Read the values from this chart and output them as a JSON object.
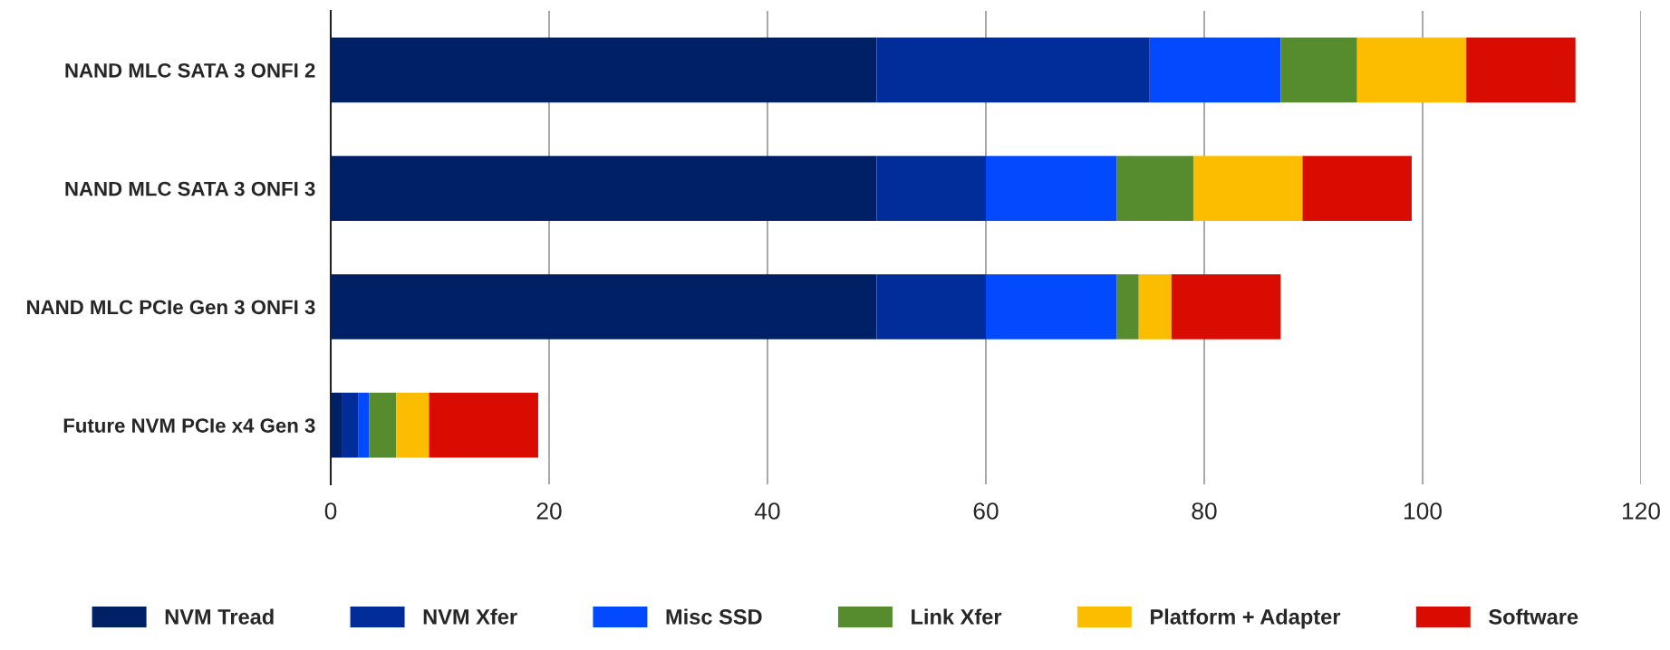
{
  "chart_data": {
    "type": "bar",
    "orientation": "horizontal",
    "stacked": true,
    "categories": [
      "NAND MLC SATA 3 ONFI 2",
      "NAND MLC SATA 3 ONFI 3",
      "NAND MLC PCIe Gen 3 ONFI 3",
      "Future NVM PCIe x4 Gen 3"
    ],
    "series": [
      {
        "name": "NVM Tread",
        "color": "#002066",
        "values": [
          50,
          50,
          50,
          1
        ]
      },
      {
        "name": "NVM Xfer",
        "color": "#002d99",
        "values": [
          25,
          10,
          10,
          1.5
        ]
      },
      {
        "name": "Misc SSD",
        "color": "#0349fd",
        "values": [
          12,
          12,
          12,
          1
        ]
      },
      {
        "name": "Link Xfer",
        "color": "#568c2d",
        "values": [
          7,
          7,
          2,
          2.5
        ]
      },
      {
        "name": "Platform + Adapter",
        "color": "#fcbd00",
        "values": [
          10,
          10,
          3,
          3
        ]
      },
      {
        "name": "Software",
        "color": "#d80c00",
        "values": [
          10,
          10,
          10,
          10
        ]
      }
    ],
    "xlim": [
      0,
      120
    ],
    "xticks": [
      0,
      20,
      40,
      60,
      80,
      100,
      120
    ],
    "grid": "x",
    "legend": "bottom"
  }
}
